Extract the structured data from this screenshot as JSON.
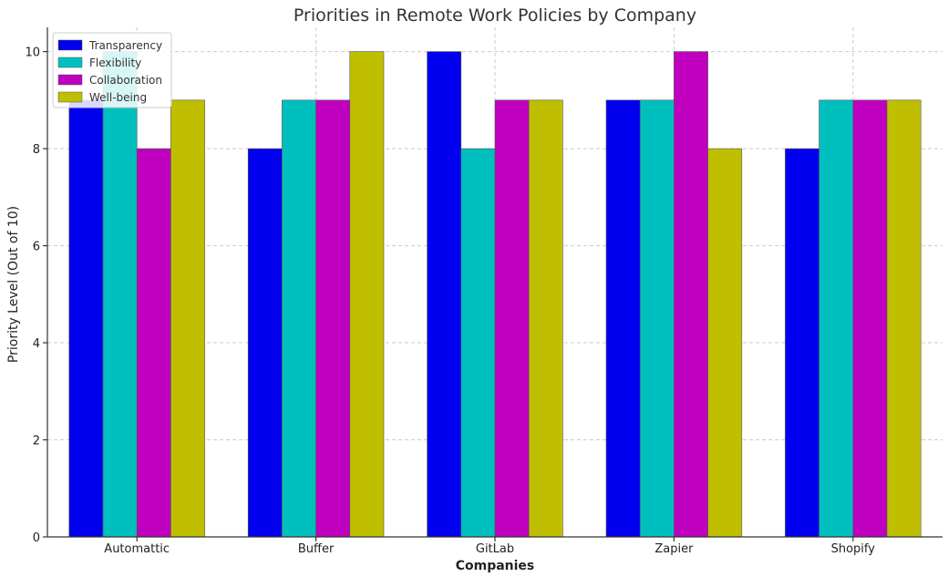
{
  "chart_data": {
    "type": "bar",
    "title": "Priorities in Remote Work Policies by Company",
    "xlabel": "Companies",
    "ylabel": "Priority Level (Out of 10)",
    "categories": [
      "Automattic",
      "Buffer",
      "GitLab",
      "Zapier",
      "Shopify"
    ],
    "series": [
      {
        "name": "Transparency",
        "color": "#0000ee",
        "values": [
          9,
          8,
          10,
          9,
          8
        ]
      },
      {
        "name": "Flexibility",
        "color": "#00bfbf",
        "values": [
          10,
          9,
          8,
          9,
          9
        ]
      },
      {
        "name": "Collaboration",
        "color": "#bf00bf",
        "values": [
          8,
          9,
          9,
          10,
          9
        ]
      },
      {
        "name": "Well-being",
        "color": "#bfbf00",
        "values": [
          9,
          10,
          9,
          8,
          9
        ]
      }
    ],
    "ylim": [
      0,
      10.5
    ],
    "yticks": [
      0,
      2,
      4,
      6,
      8,
      10
    ],
    "grid": true,
    "legend": "top-left"
  }
}
